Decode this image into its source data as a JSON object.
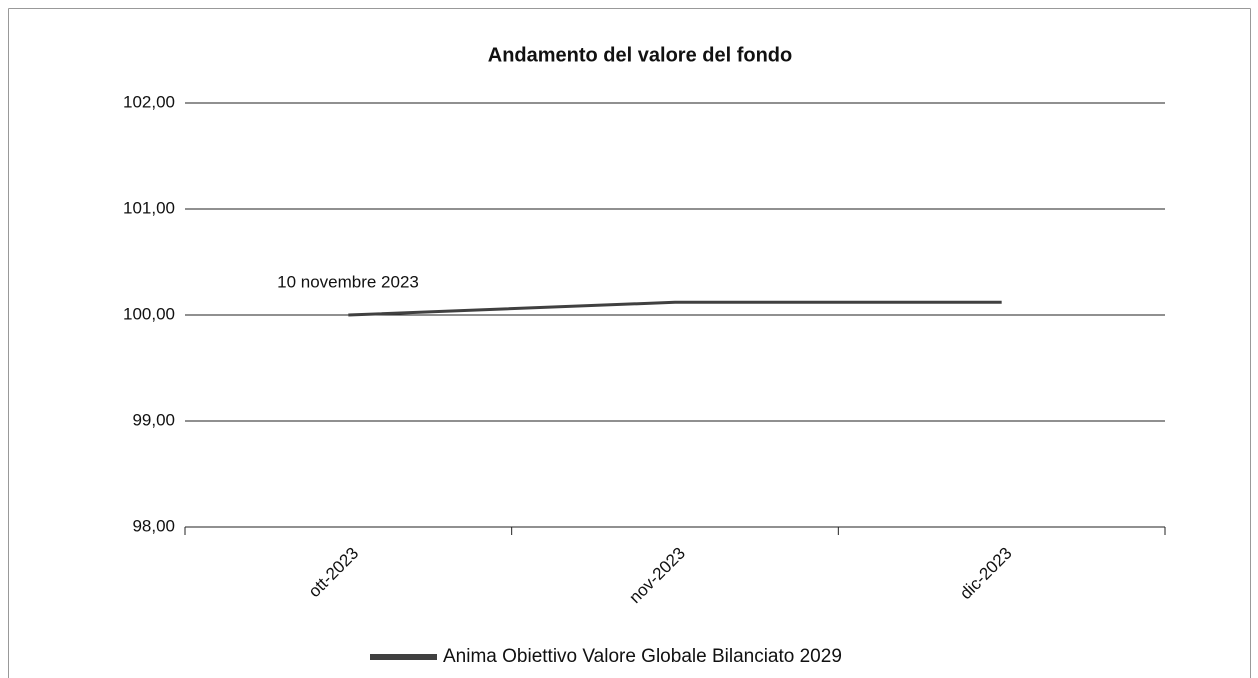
{
  "chart_data": {
    "type": "line",
    "title": "Andamento del valore del fondo",
    "categories": [
      "ott-2023",
      "nov-2023",
      "dic-2023"
    ],
    "series": [
      {
        "name": "Anima Obiettivo Valore Globale Bilanciato 2029",
        "color": "#404040",
        "values": [
          100.0,
          100.12,
          100.12
        ]
      }
    ],
    "annotations": [
      "10 novembre 2023"
    ],
    "ylim": [
      98,
      102
    ],
    "yticks": [
      {
        "value": 98,
        "label": "98,00"
      },
      {
        "value": 99,
        "label": "99,00"
      },
      {
        "value": 100,
        "label": "100,00"
      },
      {
        "value": 101,
        "label": "101,00"
      },
      {
        "value": 102,
        "label": "102,00"
      }
    ],
    "grid": true,
    "legend": "bottom"
  }
}
